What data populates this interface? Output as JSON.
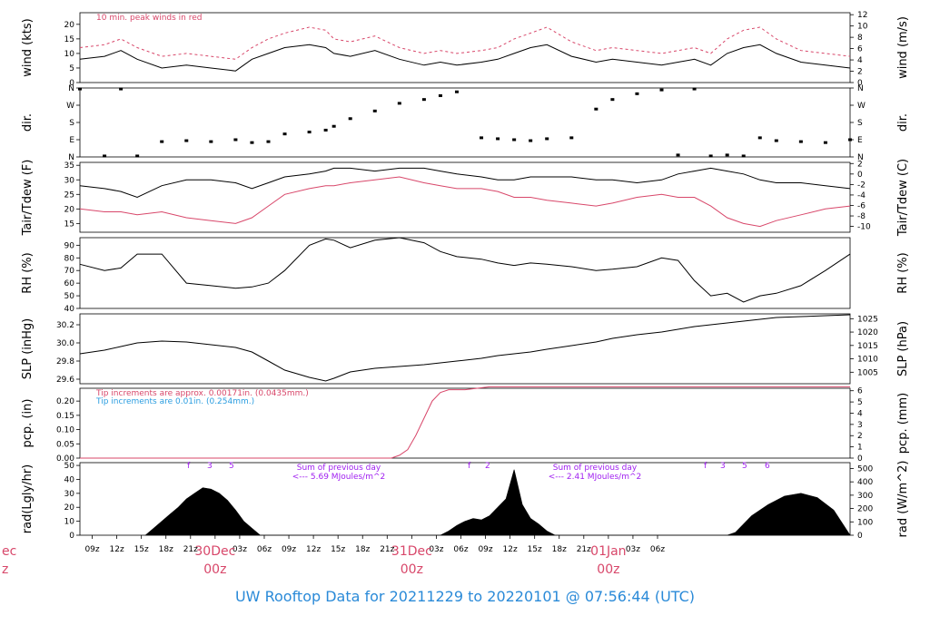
{
  "footer_title": "UW Rooftop Data for 20211229  to  20220101 @ 07:56:44  (UTC)",
  "colors": {
    "temp": "#000000",
    "dew": "#d8476a",
    "peak": "#d8476a",
    "tip_note": "#d8476a",
    "tip_note2": "#2a9de0",
    "sum": "#a020f0",
    "footer": "#2a8ad8",
    "date": "#d8476a"
  },
  "time_axis": {
    "hour_labels": [
      "09z",
      "12z",
      "15z",
      "18z",
      "21z",
      "03z",
      "06z",
      "09z",
      "12z",
      "15z",
      "18z",
      "21z",
      "03z",
      "06z",
      "09z",
      "12z",
      "15z",
      "18z",
      "21z",
      "03z",
      "06z"
    ],
    "date_labels": [
      {
        "day": "30Dec",
        "hour": "00z"
      },
      {
        "day": "31Dec",
        "hour": "00z"
      },
      {
        "day": "01Jan",
        "hour": "00z"
      }
    ],
    "clipped_left": {
      "day": "ec",
      "hour": "z"
    }
  },
  "chart_data": [
    {
      "type": "line",
      "panel": "wind",
      "ylabel": "wind (kts)",
      "ylabel_right": "wind (m/s)",
      "yticks": [
        0,
        5,
        10,
        15,
        20
      ],
      "yticks_right": [
        0,
        2,
        4,
        6,
        8,
        10,
        12
      ],
      "annotation": "10 min. peak winds in red",
      "series": [
        {
          "x_hours": [
            0,
            6,
            10,
            14,
            20,
            26,
            32,
            38,
            42,
            46,
            50,
            56,
            60,
            62,
            66,
            72,
            78,
            84,
            88,
            92,
            98,
            102,
            106,
            110,
            114,
            120,
            126,
            130,
            136,
            142,
            146,
            150,
            154,
            158,
            162,
            166,
            170,
            176,
            182,
            188
          ],
          "values": [
            8,
            9,
            11,
            8,
            5,
            6,
            5,
            4,
            8,
            10,
            12,
            13,
            12,
            10,
            9,
            11,
            8,
            6,
            7,
            6,
            7,
            8,
            10,
            12,
            13,
            9,
            7,
            8,
            7,
            6,
            7,
            8,
            6,
            10,
            12,
            13,
            10,
            7,
            6,
            5
          ]
        },
        {
          "x_hours": [
            0,
            6,
            10,
            14,
            20,
            26,
            32,
            38,
            42,
            46,
            50,
            56,
            60,
            62,
            66,
            72,
            78,
            84,
            88,
            92,
            98,
            102,
            106,
            110,
            114,
            120,
            126,
            130,
            136,
            142,
            146,
            150,
            154,
            158,
            162,
            166,
            170,
            176,
            182,
            188
          ],
          "values": [
            12,
            13,
            15,
            12,
            9,
            10,
            9,
            8,
            12,
            15,
            17,
            19,
            18,
            15,
            14,
            16,
            12,
            10,
            11,
            10,
            11,
            12,
            15,
            17,
            19,
            14,
            11,
            12,
            11,
            10,
            11,
            12,
            10,
            15,
            18,
            19,
            15,
            11,
            10,
            9
          ]
        }
      ]
    },
    {
      "type": "scatter",
      "panel": "direction",
      "ylabel": "dir.",
      "ylabel_right": "dir.",
      "yticks": [
        "N",
        "E",
        "S",
        "W",
        "N"
      ],
      "series": [
        {
          "x_hours": [
            0,
            6,
            10,
            14,
            20,
            26,
            32,
            38,
            42,
            46,
            50,
            56,
            60,
            62,
            66,
            72,
            78,
            84,
            88,
            92,
            98,
            102,
            106,
            110,
            114,
            120,
            126,
            130,
            136,
            142,
            146,
            150,
            154,
            158,
            162,
            166,
            170,
            176,
            182,
            188
          ],
          "values": [
            355,
            5,
            355,
            5,
            80,
            85,
            80,
            90,
            75,
            80,
            120,
            130,
            140,
            160,
            200,
            240,
            280,
            300,
            320,
            340,
            100,
            95,
            90,
            85,
            95,
            100,
            250,
            300,
            330,
            350,
            10,
            355,
            5,
            10,
            5,
            100,
            85,
            80,
            75,
            90
          ]
        }
      ]
    },
    {
      "type": "line",
      "panel": "temperature",
      "ylabel": "Tair/Tdew (F)",
      "ylabel_right": "Tair/Tdew (C)",
      "yticks": [
        15,
        20,
        25,
        30,
        35
      ],
      "yticks_right": [
        -10,
        -8,
        -6,
        -4,
        -2,
        0,
        2
      ],
      "series": [
        {
          "x_hours": [
            0,
            6,
            10,
            14,
            20,
            26,
            32,
            38,
            42,
            46,
            50,
            56,
            60,
            62,
            66,
            72,
            78,
            84,
            88,
            92,
            98,
            102,
            106,
            110,
            114,
            120,
            126,
            130,
            136,
            142,
            146,
            150,
            154,
            158,
            162,
            166,
            170,
            176,
            182,
            188
          ],
          "values": [
            28,
            27,
            26,
            24,
            28,
            30,
            30,
            29,
            27,
            29,
            31,
            32,
            33,
            34,
            34,
            33,
            34,
            34,
            33,
            32,
            31,
            30,
            30,
            31,
            31,
            31,
            30,
            30,
            29,
            30,
            32,
            33,
            34,
            33,
            32,
            30,
            29,
            29,
            28,
            27
          ]
        },
        {
          "x_hours": [
            0,
            6,
            10,
            14,
            20,
            26,
            32,
            38,
            42,
            46,
            50,
            56,
            60,
            62,
            66,
            72,
            78,
            84,
            88,
            92,
            98,
            102,
            106,
            110,
            114,
            120,
            126,
            130,
            136,
            142,
            146,
            150,
            154,
            158,
            162,
            166,
            170,
            176,
            182,
            188
          ],
          "values": [
            20,
            19,
            19,
            18,
            19,
            17,
            16,
            15,
            17,
            21,
            25,
            27,
            28,
            28,
            29,
            30,
            31,
            29,
            28,
            27,
            27,
            26,
            24,
            24,
            23,
            22,
            21,
            22,
            24,
            25,
            24,
            24,
            21,
            17,
            15,
            14,
            16,
            18,
            20,
            21
          ]
        }
      ]
    },
    {
      "type": "line",
      "panel": "humidity",
      "ylabel": "RH (%)",
      "ylabel_right": "RH (%)",
      "yticks": [
        40,
        50,
        60,
        70,
        80,
        90
      ],
      "series": [
        {
          "x_hours": [
            0,
            6,
            10,
            14,
            20,
            26,
            32,
            38,
            42,
            46,
            50,
            56,
            60,
            62,
            66,
            72,
            78,
            84,
            88,
            92,
            98,
            102,
            106,
            110,
            114,
            120,
            126,
            130,
            136,
            142,
            146,
            150,
            154,
            158,
            162,
            166,
            170,
            176,
            182,
            188
          ],
          "values": [
            75,
            70,
            72,
            83,
            83,
            60,
            58,
            56,
            57,
            60,
            70,
            90,
            95,
            94,
            88,
            94,
            96,
            92,
            85,
            81,
            79,
            76,
            74,
            76,
            75,
            73,
            70,
            71,
            73,
            80,
            78,
            62,
            50,
            52,
            45,
            50,
            52,
            58,
            70,
            83
          ]
        }
      ]
    },
    {
      "type": "line",
      "panel": "pressure",
      "ylabel": "SLP (inHg)",
      "ylabel_right": "SLP (hPa)",
      "yticks": [
        29.6,
        29.8,
        30.0,
        30.2
      ],
      "yticks_right": [
        1005,
        1010,
        1015,
        1020,
        1025
      ],
      "series": [
        {
          "x_hours": [
            0,
            6,
            10,
            14,
            20,
            26,
            32,
            38,
            42,
            46,
            50,
            56,
            60,
            62,
            66,
            72,
            78,
            84,
            88,
            92,
            98,
            102,
            106,
            110,
            114,
            120,
            126,
            130,
            136,
            142,
            146,
            150,
            154,
            158,
            162,
            166,
            170,
            176,
            182,
            188
          ],
          "values": [
            29.88,
            29.92,
            29.96,
            30.0,
            30.02,
            30.01,
            29.98,
            29.95,
            29.9,
            29.8,
            29.7,
            29.62,
            29.58,
            29.61,
            29.68,
            29.72,
            29.74,
            29.76,
            29.78,
            29.8,
            29.83,
            29.86,
            29.88,
            29.9,
            29.93,
            29.97,
            30.01,
            30.05,
            30.09,
            30.12,
            30.15,
            30.18,
            30.2,
            30.22,
            30.24,
            30.26,
            30.28,
            30.29,
            30.3,
            30.31
          ]
        }
      ]
    },
    {
      "type": "area",
      "panel": "precipitation",
      "ylabel": "pcp. (in)",
      "ylabel_right": "pcp. (mm)",
      "yticks": [
        0.0,
        0.05,
        0.1,
        0.15,
        0.2
      ],
      "yticks_right": [
        0,
        1,
        2,
        3,
        4,
        5,
        6
      ],
      "notes": [
        "Tip increments are approx. 0.00171in. (0.0435mm.)",
        "Tip increments are 0.01in. (0.254mm.)"
      ],
      "series": [
        {
          "x_hours": [
            0,
            40,
            76,
            78,
            80,
            82,
            84,
            86,
            88,
            90,
            94,
            100,
            188
          ],
          "values": [
            0.0,
            0.0,
            0.0,
            0.01,
            0.03,
            0.08,
            0.14,
            0.2,
            0.23,
            0.24,
            0.24,
            0.25,
            0.25
          ]
        }
      ]
    },
    {
      "type": "area",
      "panel": "radiation",
      "ylabel": "rad(Lgly/hr)",
      "ylabel_right": "rad (W/m^2)",
      "yticks": [
        0,
        10,
        20,
        30,
        40,
        50
      ],
      "yticks_right": [
        0,
        100,
        200,
        300,
        400,
        500
      ],
      "annotations": [
        {
          "lines": [
            "Sum of previous day",
            "<--- 5.69 MJoules/m^2"
          ]
        },
        {
          "lines": [
            "Sum of previous day",
            "<--- 2.41 MJoules/m^2"
          ]
        }
      ],
      "series": [
        {
          "x_hours": [
            16,
            18,
            20,
            22,
            24,
            26,
            28,
            30,
            32,
            34,
            36,
            38,
            40,
            42,
            44,
            46,
            48,
            50,
            52,
            54,
            56,
            58,
            60,
            62,
            64,
            66,
            68,
            70,
            72,
            88,
            90,
            92,
            94,
            96,
            98,
            100,
            102,
            104,
            106,
            108,
            110,
            112,
            114,
            116,
            118,
            120,
            144,
            152,
            158,
            160,
            164,
            168,
            172,
            176,
            180,
            184,
            188
          ],
          "values": [
            0,
            5,
            10,
            15,
            20,
            26,
            30,
            34,
            33,
            30,
            25,
            18,
            10,
            5,
            0,
            0,
            0,
            0,
            0,
            0,
            0,
            0,
            0,
            0,
            0,
            0,
            0,
            0,
            0,
            0,
            3,
            7,
            10,
            12,
            11,
            14,
            20,
            26,
            47,
            22,
            12,
            8,
            3,
            0,
            0,
            0,
            0,
            0,
            0,
            2,
            14,
            22,
            28,
            30,
            27,
            18,
            0
          ]
        }
      ]
    }
  ]
}
